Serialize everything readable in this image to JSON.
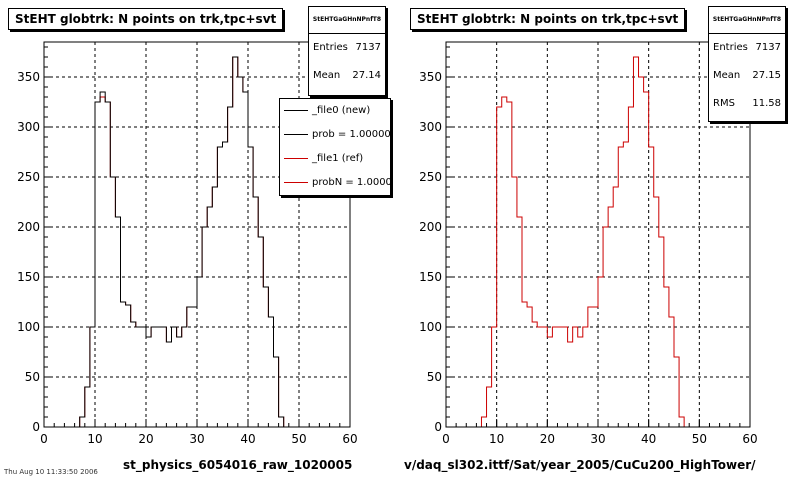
{
  "footer_text": "Thu Aug 10 11:33:50 2006",
  "chart_data": [
    {
      "type": "histogram",
      "title": "StEHT globtrk: N points on trk,tpc+svt",
      "xlabel": "st_physics_6054016_raw_1020005",
      "ylabel": "",
      "xlim": [
        0,
        60
      ],
      "ylim": [
        0,
        385
      ],
      "xticks": [
        0,
        10,
        20,
        30,
        40,
        50,
        60
      ],
      "yticks": [
        0,
        50,
        100,
        150,
        200,
        250,
        300,
        350
      ],
      "grid": true,
      "stats": {
        "name": "StEHTGaGHnNPnfT8",
        "entries_label": "Entries",
        "entries": "7137",
        "mean_label": "Mean",
        "mean": "27.14"
      },
      "legend": {
        "position": "top-right",
        "entries": [
          {
            "label": "_file0 (new)",
            "color": "#000000"
          },
          {
            "label": "prob = 1.000000",
            "color": "#000000"
          },
          {
            "label": "_file1 (ref)",
            "color": "#cc0000"
          },
          {
            "label": "probN = 1.000000",
            "color": "#cc0000"
          }
        ]
      },
      "series": [
        {
          "color": "#cc0000",
          "bin_width": 1,
          "bin_edges_start": 0,
          "values": [
            0,
            0,
            0,
            0,
            0,
            0,
            0,
            10,
            40,
            100,
            325,
            330,
            325,
            250,
            210,
            125,
            122,
            105,
            100,
            100,
            90,
            100,
            100,
            100,
            85,
            100,
            90,
            100,
            120,
            120,
            150,
            200,
            220,
            240,
            280,
            285,
            320,
            370,
            350,
            335,
            280,
            230,
            190,
            140,
            110,
            70,
            10,
            0,
            0,
            0,
            0,
            0,
            0,
            0,
            0,
            0,
            0,
            0,
            0,
            0
          ]
        },
        {
          "color": "#000000",
          "bin_width": 1,
          "bin_edges_start": 0,
          "values": [
            0,
            0,
            0,
            0,
            0,
            0,
            0,
            10,
            40,
            100,
            325,
            335,
            325,
            250,
            210,
            125,
            122,
            105,
            100,
            100,
            90,
            100,
            100,
            100,
            85,
            100,
            90,
            100,
            120,
            120,
            150,
            200,
            220,
            240,
            280,
            285,
            320,
            370,
            350,
            335,
            280,
            230,
            190,
            140,
            110,
            70,
            10,
            0,
            0,
            0,
            0,
            0,
            0,
            0,
            0,
            0,
            0,
            0,
            0,
            0
          ]
        }
      ]
    },
    {
      "type": "histogram",
      "title": "StEHT globtrk: N points on trk,tpc+svt",
      "xlabel": "v/daq_sl302.ittf/Sat/year_2005/CuCu200_HighTower/",
      "ylabel": "",
      "xlim": [
        0,
        60
      ],
      "ylim": [
        0,
        385
      ],
      "xticks": [
        0,
        10,
        20,
        30,
        40,
        50,
        60
      ],
      "yticks": [
        0,
        50,
        100,
        150,
        200,
        250,
        300,
        350
      ],
      "grid": true,
      "stats": {
        "name": "StEHTGaGHnNPnfT8",
        "entries_label": "Entries",
        "entries": "7137",
        "mean_label": "Mean",
        "mean": "27.15",
        "rms_label": "RMS",
        "rms": "11.58"
      },
      "series": [
        {
          "color": "#cc0000",
          "bin_width": 1,
          "bin_edges_start": 0,
          "values": [
            0,
            0,
            0,
            0,
            0,
            0,
            0,
            10,
            40,
            100,
            320,
            330,
            325,
            250,
            210,
            125,
            120,
            105,
            100,
            100,
            90,
            100,
            100,
            100,
            85,
            100,
            90,
            100,
            120,
            120,
            150,
            200,
            220,
            240,
            280,
            285,
            320,
            370,
            350,
            335,
            280,
            230,
            190,
            140,
            110,
            70,
            10,
            0,
            0,
            0,
            0,
            0,
            0,
            0,
            0,
            0,
            0,
            0,
            0,
            0
          ]
        }
      ]
    }
  ]
}
